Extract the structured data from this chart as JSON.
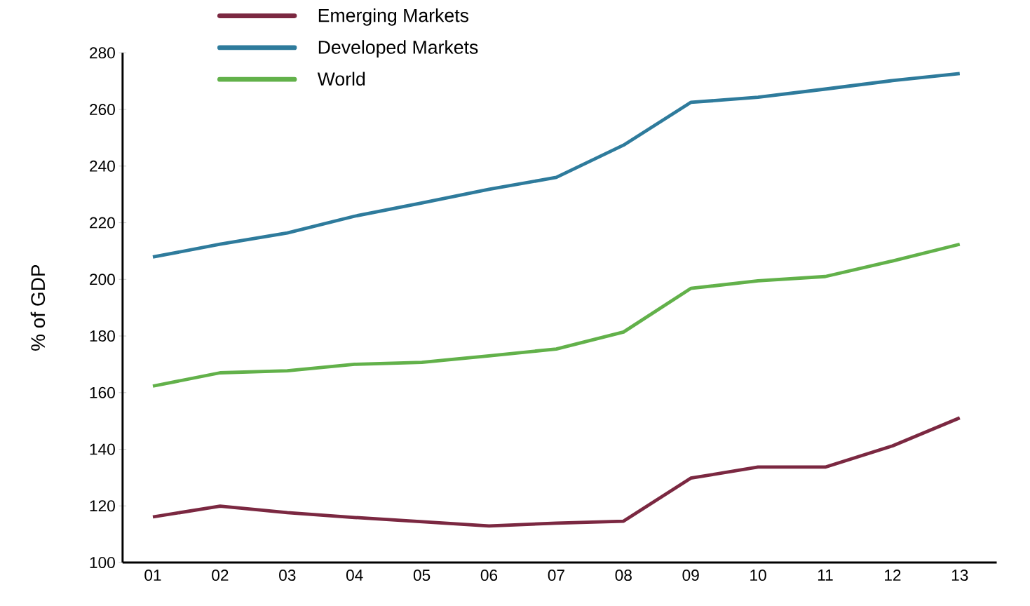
{
  "chart_data": {
    "type": "line",
    "ylabel": "% of GDP",
    "categories": [
      "01",
      "02",
      "03",
      "04",
      "05",
      "06",
      "07",
      "08",
      "09",
      "10",
      "11",
      "12",
      "13"
    ],
    "series": [
      {
        "name": "Emerging Markets",
        "color": "#7b2841",
        "values": [
          116.1,
          119.9,
          117.6,
          115.9,
          114.4,
          112.9,
          113.9,
          114.6,
          129.8,
          133.7,
          133.7,
          141.2,
          151.1
        ]
      },
      {
        "name": "Developed Markets",
        "color": "#2e7b9c",
        "values": [
          207.9,
          212.4,
          216.4,
          222.3,
          227,
          231.8,
          236,
          247.4,
          262.5,
          264.3,
          267.2,
          270.2,
          272.7
        ]
      },
      {
        "name": "World",
        "color": "#62b14a",
        "values": [
          162.3,
          167,
          167.7,
          170,
          170.7,
          173,
          175.4,
          181.4,
          196.8,
          199.5,
          201,
          206.5,
          212.4
        ]
      }
    ],
    "ylim": [
      100,
      280
    ],
    "yticks": [
      100,
      120,
      140,
      160,
      180,
      200,
      220,
      240,
      260,
      280
    ],
    "grid": false,
    "legend": "top left",
    "marker": "none",
    "line_style": "solid"
  }
}
